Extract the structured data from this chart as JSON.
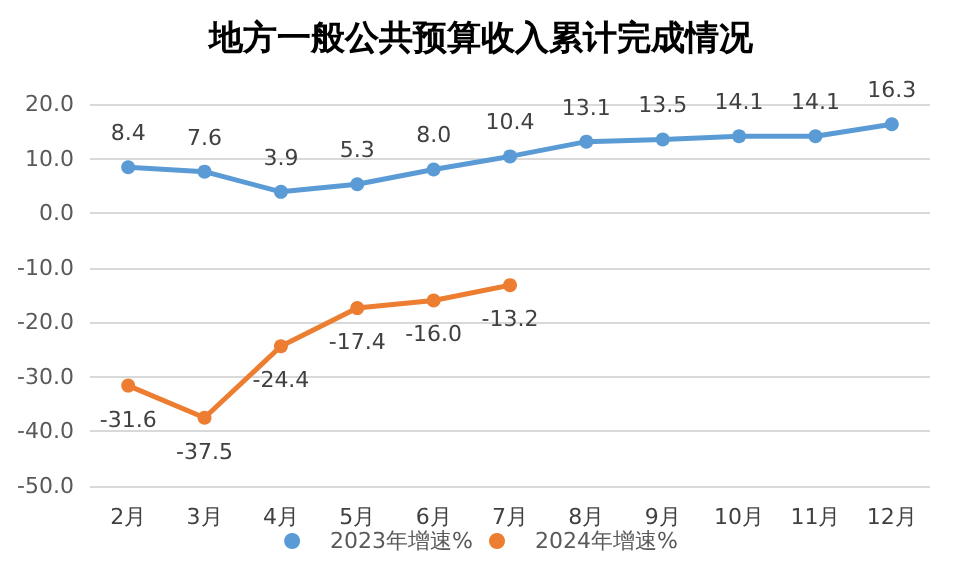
{
  "chart_data": {
    "type": "line",
    "title": "地方一般公共预算收入累计完成情况",
    "categories": [
      "2月",
      "3月",
      "4月",
      "5月",
      "6月",
      "7月",
      "8月",
      "9月",
      "10月",
      "11月",
      "12月"
    ],
    "series": [
      {
        "name": "2023年增速%",
        "color": "#5b9bd5",
        "values": [
          8.4,
          7.6,
          3.9,
          5.3,
          8.0,
          10.4,
          13.1,
          13.5,
          14.1,
          14.1,
          16.3
        ],
        "value_labels": [
          "8.4",
          "7.6",
          "3.9",
          "5.3",
          "8.0",
          "10.4",
          "13.1",
          "13.5",
          "14.1",
          "14.1",
          "16.3"
        ]
      },
      {
        "name": "2024年增速%",
        "color": "#ed7d31",
        "values": [
          -31.6,
          -37.5,
          -24.4,
          -17.4,
          -16.0,
          -13.2,
          null,
          null,
          null,
          null,
          null
        ],
        "value_labels": [
          "-31.6",
          "-37.5",
          "-24.4",
          "-17.4",
          "-16.0",
          "-13.2",
          null,
          null,
          null,
          null,
          null
        ]
      }
    ],
    "ylim": [
      -50,
      20
    ],
    "yticks": [
      {
        "value": -50,
        "label": "-50.0"
      },
      {
        "value": -40,
        "label": "-40.0"
      },
      {
        "value": -30,
        "label": "-30.0"
      },
      {
        "value": -20,
        "label": "-20.0"
      },
      {
        "value": -10,
        "label": "-10.0"
      },
      {
        "value": 0,
        "label": "0.0"
      },
      {
        "value": 10,
        "label": "10.0"
      },
      {
        "value": 20,
        "label": "20.0"
      }
    ],
    "grid": "y",
    "legend": "bottom",
    "marker": "circle",
    "line_style": "solid"
  }
}
